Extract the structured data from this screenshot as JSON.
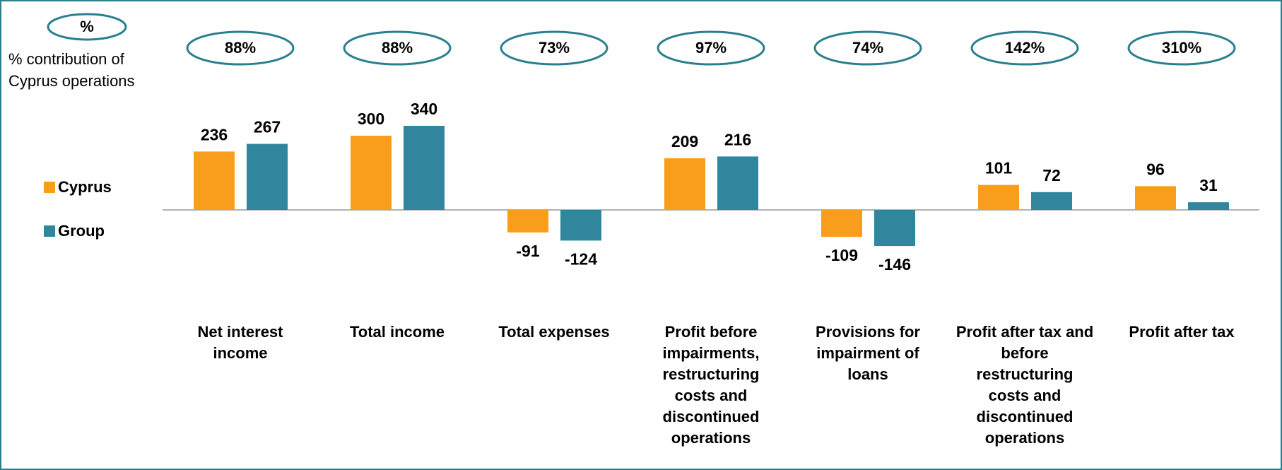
{
  "chart_data": {
    "type": "bar",
    "header_label": "%",
    "contribution_title": "% contribution of Cyprus operations",
    "contribution_labels": [
      "88%",
      "88%",
      "73%",
      "97%",
      "74%",
      "142%",
      "310%"
    ],
    "categories": [
      "Net interest income",
      "Total income",
      "Total expenses",
      "Profit before impairments, restructuring costs and discontinued operations",
      "Provisions for impairment of loans",
      "Profit after tax and before restructuring costs and discontinued operations",
      "Profit after tax"
    ],
    "series": [
      {
        "name": "Cyprus",
        "color": "#f99d1c",
        "values": [
          236,
          300,
          -91,
          209,
          -109,
          101,
          96
        ]
      },
      {
        "name": "Group",
        "color": "#31869e",
        "values": [
          267,
          340,
          -124,
          216,
          -146,
          72,
          31
        ]
      }
    ]
  }
}
